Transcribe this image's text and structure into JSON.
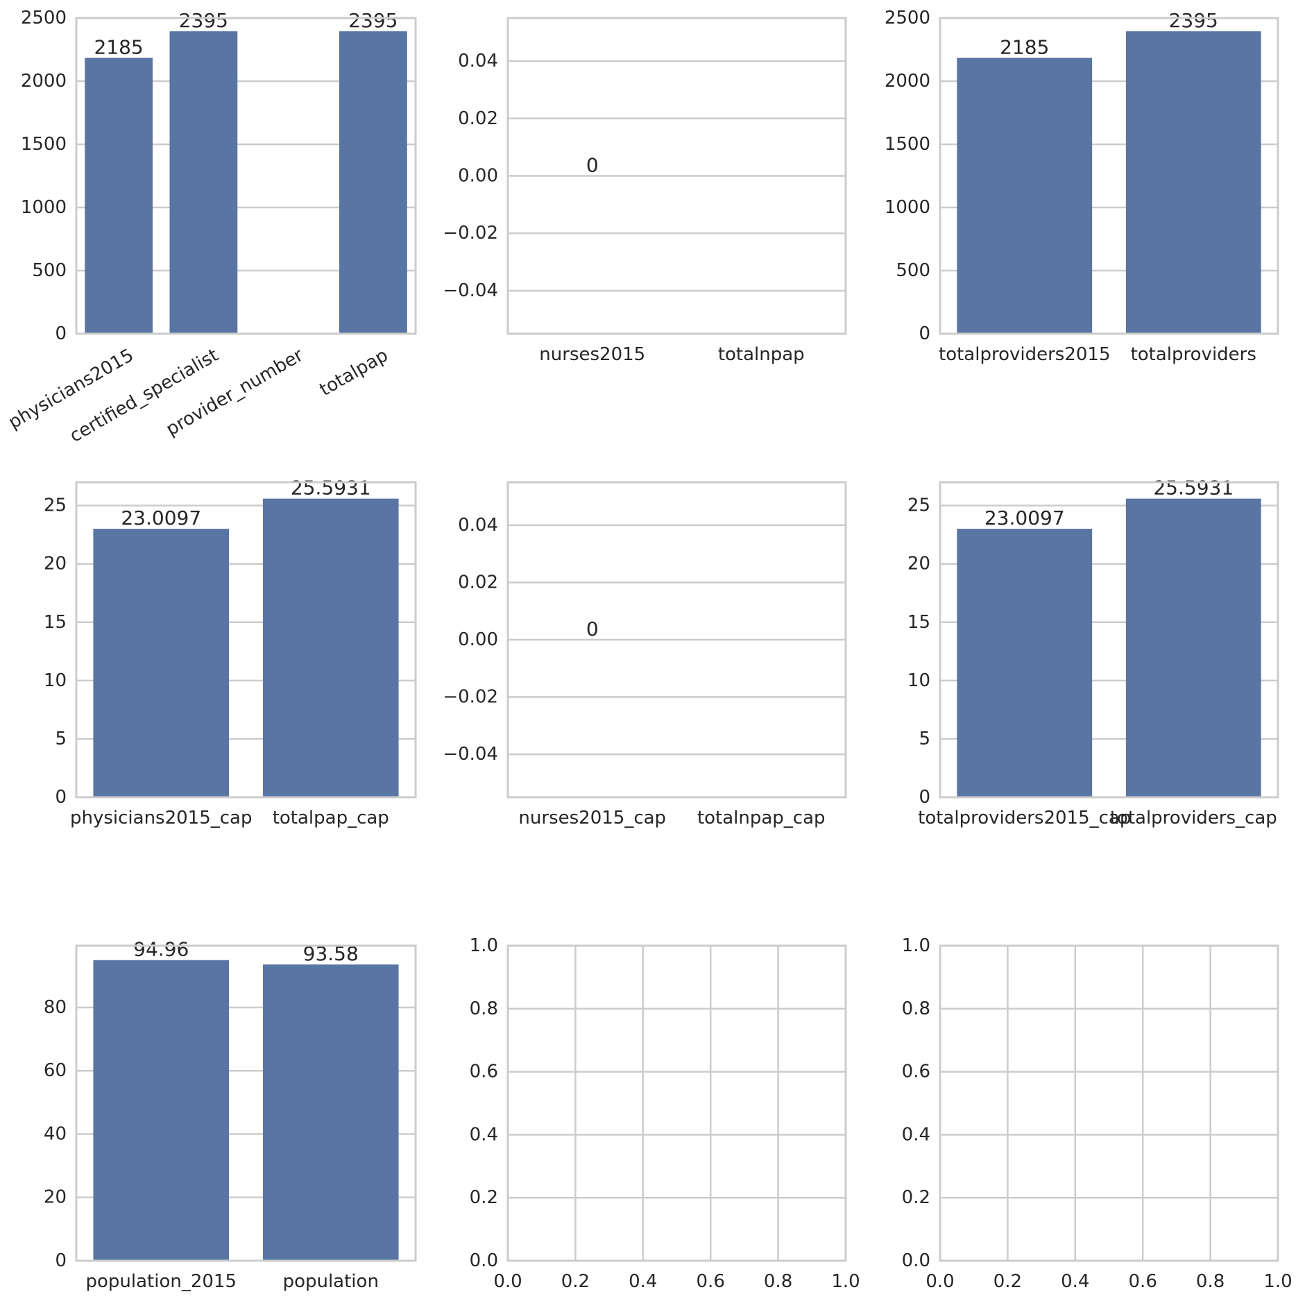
{
  "chart_data": [
    {
      "type": "bar",
      "categories": [
        "physicians2015",
        "certified_specialist",
        "provider_number",
        "totalpap"
      ],
      "values": [
        2185,
        2395,
        null,
        2395
      ],
      "value_labels": [
        "2185",
        "2395",
        "",
        "2395"
      ],
      "ylim": [
        0,
        2500
      ],
      "yticks": [
        0,
        500,
        1000,
        1500,
        2000,
        2500
      ],
      "ytick_labels": [
        "0",
        "500",
        "1000",
        "1500",
        "2000",
        "2500"
      ],
      "xtick_rotation": 30,
      "grid": "y",
      "color": "#5975a4"
    },
    {
      "type": "bar",
      "categories": [
        "nurses2015",
        "totalnpap"
      ],
      "values": [
        0,
        null
      ],
      "value_labels": [
        "0",
        ""
      ],
      "ylim": [
        -0.055,
        0.055
      ],
      "yticks": [
        -0.04,
        -0.02,
        0.0,
        0.02,
        0.04
      ],
      "ytick_labels": [
        "−0.04",
        "−0.02",
        "0.00",
        "0.02",
        "0.04"
      ],
      "grid": "y",
      "color": "#5975a4"
    },
    {
      "type": "bar",
      "categories": [
        "totalproviders2015",
        "totalproviders"
      ],
      "values": [
        2185,
        2395
      ],
      "value_labels": [
        "2185",
        "2395"
      ],
      "ylim": [
        0,
        2500
      ],
      "yticks": [
        0,
        500,
        1000,
        1500,
        2000,
        2500
      ],
      "ytick_labels": [
        "0",
        "500",
        "1000",
        "1500",
        "2000",
        "2500"
      ],
      "grid": "y",
      "color": "#5975a4"
    },
    {
      "type": "bar",
      "categories": [
        "physicians2015_cap",
        "totalpap_cap"
      ],
      "values": [
        23.0097,
        25.5931
      ],
      "value_labels": [
        "23.0097",
        "25.5931"
      ],
      "ylim": [
        0,
        27
      ],
      "yticks": [
        0,
        5,
        10,
        15,
        20,
        25
      ],
      "ytick_labels": [
        "0",
        "5",
        "10",
        "15",
        "20",
        "25"
      ],
      "grid": "y",
      "color": "#5975a4"
    },
    {
      "type": "bar",
      "categories": [
        "nurses2015_cap",
        "totalnpap_cap"
      ],
      "values": [
        0,
        null
      ],
      "value_labels": [
        "0",
        ""
      ],
      "ylim": [
        -0.055,
        0.055
      ],
      "yticks": [
        -0.04,
        -0.02,
        0.0,
        0.02,
        0.04
      ],
      "ytick_labels": [
        "−0.04",
        "−0.02",
        "0.00",
        "0.02",
        "0.04"
      ],
      "grid": "y",
      "color": "#5975a4"
    },
    {
      "type": "bar",
      "categories": [
        "totalproviders2015_cap",
        "totalproviders_cap"
      ],
      "values": [
        23.0097,
        25.5931
      ],
      "value_labels": [
        "23.0097",
        "25.5931"
      ],
      "ylim": [
        0,
        27
      ],
      "yticks": [
        0,
        5,
        10,
        15,
        20,
        25
      ],
      "ytick_labels": [
        "0",
        "5",
        "10",
        "15",
        "20",
        "25"
      ],
      "grid": "y",
      "color": "#5975a4"
    },
    {
      "type": "bar",
      "categories": [
        "population_2015",
        "population"
      ],
      "values": [
        94.96,
        93.58
      ],
      "value_labels": [
        "94.96",
        "93.58"
      ],
      "ylim": [
        0,
        99.5
      ],
      "yticks": [
        0,
        20,
        40,
        60,
        80
      ],
      "ytick_labels": [
        "0",
        "20",
        "40",
        "60",
        "80"
      ],
      "grid": "y",
      "color": "#5975a4"
    },
    {
      "type": "empty",
      "xlim": [
        0,
        1
      ],
      "ylim": [
        0,
        1
      ],
      "xticks": [
        0,
        0.2,
        0.4,
        0.6,
        0.8,
        1.0
      ],
      "xtick_labels": [
        "0.0",
        "0.2",
        "0.4",
        "0.6",
        "0.8",
        "1.0"
      ],
      "yticks": [
        0,
        0.2,
        0.4,
        0.6,
        0.8,
        1.0
      ],
      "ytick_labels": [
        "0.0",
        "0.2",
        "0.4",
        "0.6",
        "0.8",
        "1.0"
      ],
      "grid": "both"
    },
    {
      "type": "empty",
      "xlim": [
        0,
        1
      ],
      "ylim": [
        0,
        1
      ],
      "xticks": [
        0,
        0.2,
        0.4,
        0.6,
        0.8,
        1.0
      ],
      "xtick_labels": [
        "0.0",
        "0.2",
        "0.4",
        "0.6",
        "0.8",
        "1.0"
      ],
      "yticks": [
        0,
        0.2,
        0.4,
        0.6,
        0.8,
        1.0
      ],
      "ytick_labels": [
        "0.0",
        "0.2",
        "0.4",
        "0.6",
        "0.8",
        "1.0"
      ],
      "grid": "both"
    }
  ]
}
